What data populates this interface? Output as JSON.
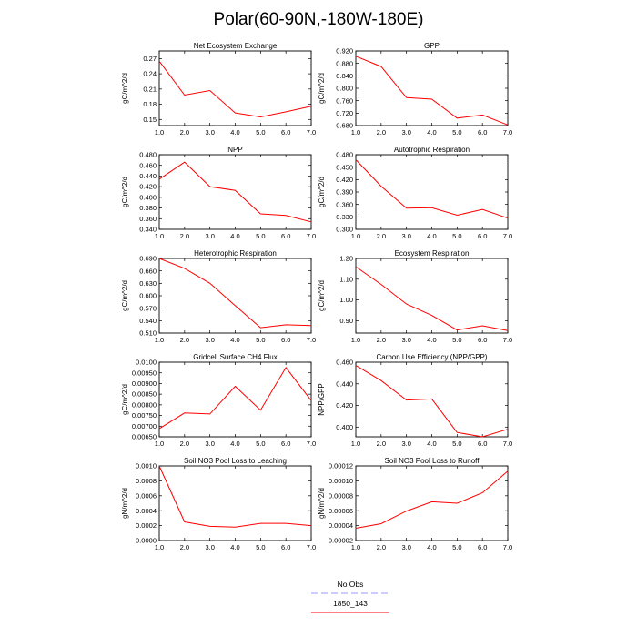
{
  "title": "Polar(60-90N,-180W-180E)",
  "legend": {
    "entries": [
      {
        "label": "No Obs",
        "color": "#9999ff",
        "style": "dashed"
      },
      {
        "label": "1850_143",
        "color": "#ff0000",
        "style": "solid"
      }
    ]
  },
  "series_color": "#ff0000",
  "chart_data": [
    {
      "type": "line",
      "title": "Net Ecosystem Exchange",
      "ylabel": "gC/m^2/d",
      "x": [
        1,
        2,
        3,
        4,
        5,
        6,
        7
      ],
      "values": [
        0.265,
        0.198,
        0.207,
        0.163,
        0.155,
        0.165,
        0.176
      ],
      "xlim": [
        1,
        7
      ],
      "ylim": [
        0.138,
        0.285
      ],
      "xticks": [
        "1.0",
        "2.0",
        "3.0",
        "4.0",
        "5.0",
        "6.0",
        "7.0"
      ],
      "yticks": [
        "0.15",
        "0.18",
        "0.21",
        "0.24",
        "0.27"
      ],
      "ytick_values": [
        0.15,
        0.18,
        0.21,
        0.24,
        0.27
      ]
    },
    {
      "type": "line",
      "title": "GPP",
      "ylabel": "gC/m^2/d",
      "x": [
        1,
        2,
        3,
        4,
        5,
        6,
        7
      ],
      "values": [
        0.903,
        0.87,
        0.77,
        0.765,
        0.704,
        0.714,
        0.682
      ],
      "xlim": [
        1,
        7
      ],
      "ylim": [
        0.68,
        0.92
      ],
      "xticks": [
        "1.0",
        "2.0",
        "3.0",
        "4.0",
        "5.0",
        "6.0",
        "7.0"
      ],
      "yticks": [
        "0.680",
        "0.720",
        "0.760",
        "0.800",
        "0.840",
        "0.880",
        "0.920"
      ],
      "ytick_values": [
        0.68,
        0.72,
        0.76,
        0.8,
        0.84,
        0.88,
        0.92
      ]
    },
    {
      "type": "line",
      "title": "NPP",
      "ylabel": "gC/m^2/d",
      "x": [
        1,
        2,
        3,
        4,
        5,
        6,
        7
      ],
      "values": [
        0.434,
        0.466,
        0.42,
        0.413,
        0.369,
        0.366,
        0.354
      ],
      "xlim": [
        1,
        7
      ],
      "ylim": [
        0.34,
        0.48
      ],
      "xticks": [
        "1.0",
        "2.0",
        "3.0",
        "4.0",
        "5.0",
        "6.0",
        "7.0"
      ],
      "yticks": [
        "0.340",
        "0.360",
        "0.380",
        "0.400",
        "0.420",
        "0.440",
        "0.460",
        "0.480"
      ],
      "ytick_values": [
        0.34,
        0.36,
        0.38,
        0.4,
        0.42,
        0.44,
        0.46,
        0.48
      ]
    },
    {
      "type": "line",
      "title": "Autotrophic Respiration",
      "ylabel": "gC/m^2/d",
      "x": [
        1,
        2,
        3,
        4,
        5,
        6,
        7
      ],
      "values": [
        0.468,
        0.404,
        0.351,
        0.352,
        0.334,
        0.348,
        0.327
      ],
      "xlim": [
        1,
        7
      ],
      "ylim": [
        0.3,
        0.48
      ],
      "xticks": [
        "1.0",
        "2.0",
        "3.0",
        "4.0",
        "5.0",
        "6.0",
        "7.0"
      ],
      "yticks": [
        "0.300",
        "0.330",
        "0.360",
        "0.390",
        "0.420",
        "0.450",
        "0.480"
      ],
      "ytick_values": [
        0.3,
        0.33,
        0.36,
        0.39,
        0.42,
        0.45,
        0.48
      ]
    },
    {
      "type": "line",
      "title": "Heterotrophic Respiration",
      "ylabel": "gC/m^2/d",
      "x": [
        1,
        2,
        3,
        4,
        5,
        6,
        7
      ],
      "values": [
        0.69,
        0.666,
        0.63,
        0.576,
        0.523,
        0.53,
        0.528
      ],
      "xlim": [
        1,
        7
      ],
      "ylim": [
        0.51,
        0.69
      ],
      "xticks": [
        "1.0",
        "2.0",
        "3.0",
        "4.0",
        "5.0",
        "6.0",
        "7.0"
      ],
      "yticks": [
        "0.510",
        "0.540",
        "0.570",
        "0.600",
        "0.630",
        "0.660",
        "0.690"
      ],
      "ytick_values": [
        0.51,
        0.54,
        0.57,
        0.6,
        0.63,
        0.66,
        0.69
      ]
    },
    {
      "type": "line",
      "title": "Ecosystem Respiration",
      "ylabel": "gC/m^2/d",
      "x": [
        1,
        2,
        3,
        4,
        5,
        6,
        7
      ],
      "values": [
        1.16,
        1.075,
        0.98,
        0.925,
        0.855,
        0.875,
        0.852
      ],
      "xlim": [
        1,
        7
      ],
      "ylim": [
        0.84,
        1.2
      ],
      "xticks": [
        "1.0",
        "2.0",
        "3.0",
        "4.0",
        "5.0",
        "6.0",
        "7.0"
      ],
      "yticks": [
        "0.90",
        "1.00",
        "1.10",
        "1.20"
      ],
      "ytick_values": [
        0.9,
        1.0,
        1.1,
        1.2
      ]
    },
    {
      "type": "line",
      "title": "Gridcell Surface CH4 Flux",
      "ylabel": "gC/m^2/d",
      "x": [
        1,
        2,
        3,
        4,
        5,
        6,
        7
      ],
      "values": [
        0.00688,
        0.00762,
        0.00757,
        0.00887,
        0.00775,
        0.00975,
        0.0082
      ],
      "xlim": [
        1,
        7
      ],
      "ylim": [
        0.0065,
        0.01
      ],
      "xticks": [
        "1.0",
        "2.0",
        "3.0",
        "4.0",
        "5.0",
        "6.0",
        "7.0"
      ],
      "yticks": [
        "0.00650",
        "0.00700",
        "0.00750",
        "0.00800",
        "0.00850",
        "0.00900",
        "0.00950",
        "0.0100"
      ],
      "ytick_values": [
        0.0065,
        0.007,
        0.0075,
        0.008,
        0.0085,
        0.009,
        0.0095,
        0.01
      ]
    },
    {
      "type": "line",
      "title": "Carbon Use Efficiency (NPP/GPP)",
      "ylabel": "NPP/GPP",
      "x": [
        1,
        2,
        3,
        4,
        5,
        6,
        7
      ],
      "values": [
        0.457,
        0.443,
        0.425,
        0.426,
        0.395,
        0.391,
        0.398
      ],
      "xlim": [
        1,
        7
      ],
      "ylim": [
        0.391,
        0.46
      ],
      "xticks": [
        "1.0",
        "2.0",
        "3.0",
        "4.0",
        "5.0",
        "6.0",
        "7.0"
      ],
      "yticks": [
        "0.400",
        "0.420",
        "0.440",
        "0.460"
      ],
      "ytick_values": [
        0.4,
        0.42,
        0.44,
        0.46
      ]
    },
    {
      "type": "line",
      "title": "Soil NO3 Pool Loss to Leaching",
      "ylabel": "gN/m^2/d",
      "x": [
        1,
        2,
        3,
        4,
        5,
        6,
        7
      ],
      "values": [
        0.001,
        0.00025,
        0.00019,
        0.00018,
        0.00023,
        0.00023,
        0.0002
      ],
      "xlim": [
        1,
        7
      ],
      "ylim": [
        0.0,
        0.001
      ],
      "xticks": [
        "1.0",
        "2.0",
        "3.0",
        "4.0",
        "5.0",
        "6.0",
        "7.0"
      ],
      "yticks": [
        "0.0000",
        "0.0002",
        "0.0004",
        "0.0006",
        "0.0008",
        "0.0010"
      ],
      "ytick_values": [
        0.0,
        0.0002,
        0.0004,
        0.0006,
        0.0008,
        0.001
      ]
    },
    {
      "type": "line",
      "title": "Soil NO3 Pool Loss to Runoff",
      "ylabel": "gN/m^2/d",
      "x": [
        1,
        2,
        3,
        4,
        5,
        6,
        7
      ],
      "values": [
        3.65e-05,
        4.25e-05,
        5.95e-05,
        7.2e-05,
        7e-05,
        8.4e-05,
        0.000113
      ],
      "xlim": [
        1,
        7
      ],
      "ylim": [
        2e-05,
        0.00012
      ],
      "xticks": [
        "1.0",
        "2.0",
        "3.0",
        "4.0",
        "5.0",
        "6.0",
        "7.0"
      ],
      "yticks": [
        "0.00002",
        "0.00004",
        "0.00006",
        "0.00008",
        "0.00010",
        "0.00012"
      ],
      "ytick_values": [
        2e-05,
        4e-05,
        6e-05,
        8e-05,
        0.0001,
        0.00012
      ]
    }
  ]
}
